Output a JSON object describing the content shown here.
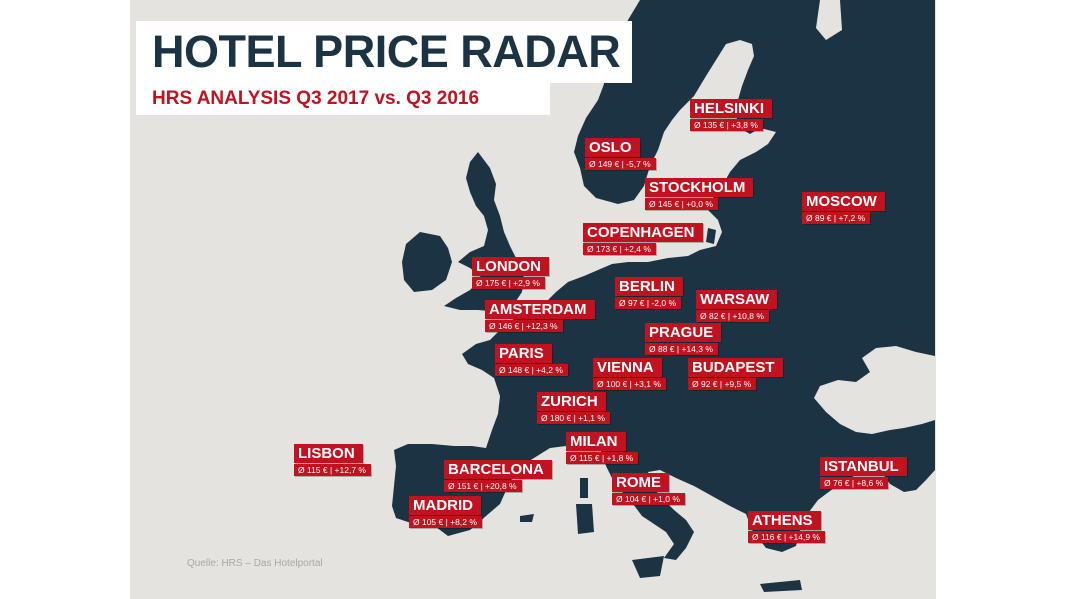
{
  "title": "HOTEL PRICE RADAR",
  "subtitle": "HRS ANALYSIS Q3 2017 vs. Q3 2016",
  "source": "Quelle: HRS – Das Hotelportal",
  "colors": {
    "map_land": "#1c3343",
    "background": "#e4e3df",
    "label_red": "#c1121f",
    "title_text": "#1c3343"
  },
  "cities": [
    {
      "id": "helsinki",
      "name": "HELSINKI",
      "stat": "Ø 135 € | +3,8 %",
      "avg_price_eur": 135,
      "change_pct": 3.8
    },
    {
      "id": "oslo",
      "name": "OSLO",
      "stat": "Ø 149 € | -5,7 %",
      "avg_price_eur": 149,
      "change_pct": -5.7
    },
    {
      "id": "stockholm",
      "name": "STOCKHOLM",
      "stat": "Ø 145 € | +0,0 %",
      "avg_price_eur": 145,
      "change_pct": 0.0
    },
    {
      "id": "moscow",
      "name": "MOSCOW",
      "stat": "Ø 89 € | +7,2 %",
      "avg_price_eur": 89,
      "change_pct": 7.2
    },
    {
      "id": "copenhagen",
      "name": "COPENHAGEN",
      "stat": "Ø 173 € | +2,4 %",
      "avg_price_eur": 173,
      "change_pct": 2.4
    },
    {
      "id": "london",
      "name": "LONDON",
      "stat": "Ø 175 € | +2,9 %",
      "avg_price_eur": 175,
      "change_pct": 2.9
    },
    {
      "id": "berlin",
      "name": "BERLIN",
      "stat": "Ø 97 € | -2,0 %",
      "avg_price_eur": 97,
      "change_pct": -2.0
    },
    {
      "id": "warsaw",
      "name": "WARSAW",
      "stat": "Ø 82 € | +10,8 %",
      "avg_price_eur": 82,
      "change_pct": 10.8
    },
    {
      "id": "amsterdam",
      "name": "AMSTERDAM",
      "stat": "Ø 146 € | +12,3 %",
      "avg_price_eur": 146,
      "change_pct": 12.3
    },
    {
      "id": "prague",
      "name": "PRAGUE",
      "stat": "Ø 88 € | +14,3 %",
      "avg_price_eur": 88,
      "change_pct": 14.3
    },
    {
      "id": "paris",
      "name": "PARIS",
      "stat": "Ø 148 € | +4,2 %",
      "avg_price_eur": 148,
      "change_pct": 4.2
    },
    {
      "id": "vienna",
      "name": "VIENNA",
      "stat": "Ø 100 € | +3,1 %",
      "avg_price_eur": 100,
      "change_pct": 3.1
    },
    {
      "id": "budapest",
      "name": "BUDAPEST",
      "stat": "Ø 92 € | +9,5 %",
      "avg_price_eur": 92,
      "change_pct": 9.5
    },
    {
      "id": "zurich",
      "name": "ZURICH",
      "stat": "Ø 180 € | +1,1 %",
      "avg_price_eur": 180,
      "change_pct": 1.1
    },
    {
      "id": "milan",
      "name": "MILAN",
      "stat": "Ø 115 € | +1,8 %",
      "avg_price_eur": 115,
      "change_pct": 1.8
    },
    {
      "id": "lisbon",
      "name": "LISBON",
      "stat": "Ø 115 € | +12,7 %",
      "avg_price_eur": 115,
      "change_pct": 12.7
    },
    {
      "id": "barcelona",
      "name": "BARCELONA",
      "stat": "Ø 151 € | +20,8 %",
      "avg_price_eur": 151,
      "change_pct": 20.8
    },
    {
      "id": "istanbul",
      "name": "ISTANBUL",
      "stat": "Ø 76 € | +8,6 %",
      "avg_price_eur": 76,
      "change_pct": 8.6
    },
    {
      "id": "rome",
      "name": "ROME",
      "stat": "Ø 104 € | +1,0 %",
      "avg_price_eur": 104,
      "change_pct": 1.0
    },
    {
      "id": "madrid",
      "name": "MADRID",
      "stat": "Ø 105 € | +8,2 %",
      "avg_price_eur": 105,
      "change_pct": 8.2
    },
    {
      "id": "athens",
      "name": "ATHENS",
      "stat": "Ø 116 € | +14,9 %",
      "avg_price_eur": 116,
      "change_pct": 14.9
    }
  ]
}
